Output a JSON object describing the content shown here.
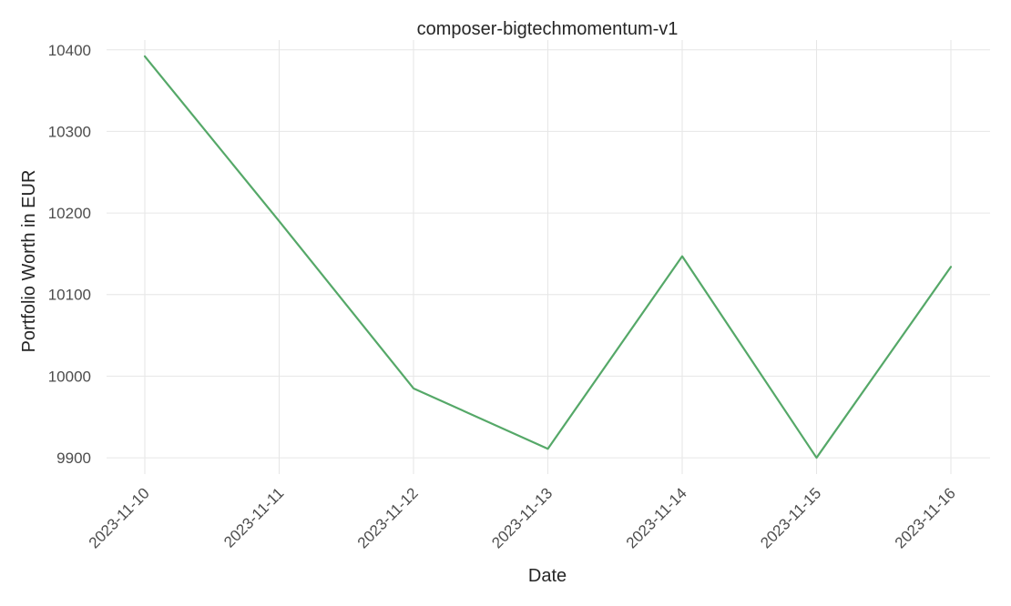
{
  "chart_data": {
    "type": "line",
    "title": "composer-bigtechmomentum-v1",
    "xlabel": "Date",
    "ylabel": "Portfolio Worth in EUR",
    "x": [
      "2023-11-10",
      "2023-11-11",
      "2023-11-12",
      "2023-11-13",
      "2023-11-14",
      "2023-11-15",
      "2023-11-16"
    ],
    "series": [
      {
        "values": [
          10392,
          10190,
          9985,
          9911,
          10147,
          9900,
          10134
        ],
        "color": "#55a868"
      }
    ],
    "yticks": [
      9900,
      10000,
      10100,
      10200,
      10300,
      10400
    ],
    "ylim": [
      9880,
      10412
    ],
    "grid": true,
    "legend": "none"
  }
}
